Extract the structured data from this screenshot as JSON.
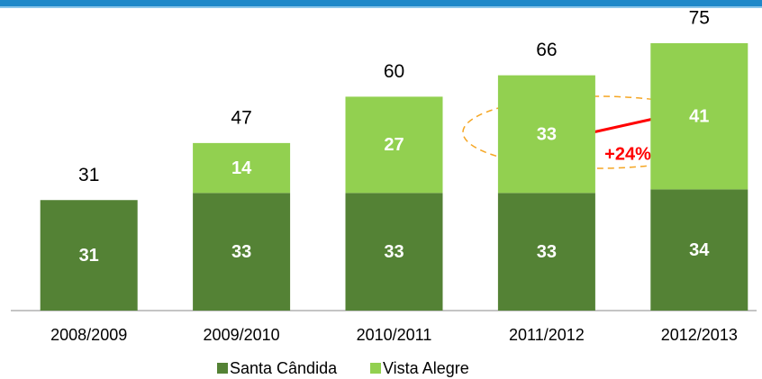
{
  "chart_data": {
    "type": "bar",
    "stacked": true,
    "categories": [
      "2008/2009",
      "2009/2010",
      "2010/2011",
      "2011/2012",
      "2012/2013"
    ],
    "series": [
      {
        "name": "Santa Cândida",
        "color": "#548235",
        "values": [
          31,
          33,
          33,
          33,
          34
        ]
      },
      {
        "name": "Vista Alegre",
        "color": "#92d050",
        "values": [
          null,
          14,
          27,
          33,
          41
        ]
      }
    ],
    "totals": [
      31,
      47,
      60,
      66,
      75
    ],
    "annotation": "+24%",
    "ylim": [
      0,
      75
    ]
  }
}
